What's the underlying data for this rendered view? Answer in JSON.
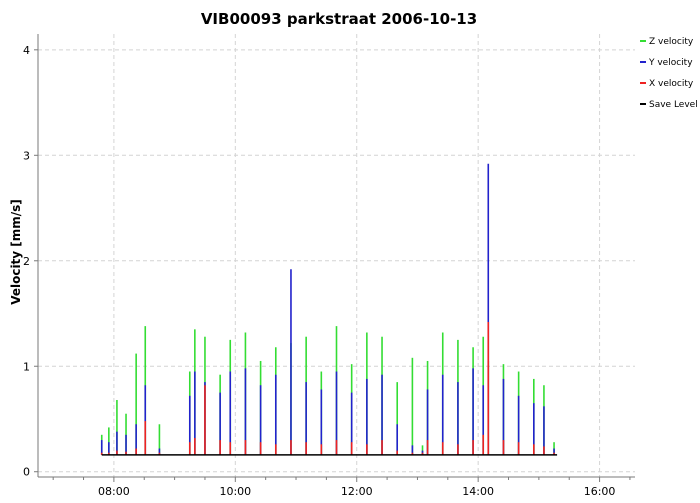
{
  "chart_data": {
    "type": "line",
    "title": "VIB00093 parkstraat 2006-10-13",
    "xlabel": "",
    "ylabel": "Velocity [mm/s]",
    "x_ticks": [
      "08:00",
      "10:00",
      "12:00",
      "14:00",
      "16:00"
    ],
    "xlim": [
      "06:45",
      "16:35"
    ],
    "y_ticks": [
      0,
      1,
      2,
      3,
      4
    ],
    "ylim": [
      -0.05,
      4.15
    ],
    "grid": true,
    "legend_position": "top-right",
    "series": [
      {
        "name": "Z velocity",
        "color": "#33dd33",
        "x": [
          "07:48",
          "07:55",
          "08:03",
          "08:12",
          "08:22",
          "08:31",
          "08:45",
          "09:15",
          "09:20",
          "09:30",
          "09:45",
          "09:55",
          "10:10",
          "10:25",
          "10:40",
          "10:55",
          "11:10",
          "11:25",
          "11:40",
          "11:55",
          "12:10",
          "12:25",
          "12:40",
          "12:55",
          "13:05",
          "13:10",
          "13:25",
          "13:40",
          "13:55",
          "14:05",
          "14:10",
          "14:25",
          "14:40",
          "14:55",
          "15:05",
          "15:15"
        ],
        "y": [
          0.35,
          0.42,
          0.68,
          0.55,
          1.12,
          1.38,
          0.45,
          0.95,
          1.35,
          1.28,
          0.92,
          1.25,
          1.32,
          1.05,
          1.18,
          1.22,
          1.28,
          0.95,
          1.38,
          1.02,
          1.32,
          1.28,
          0.85,
          1.08,
          0.25,
          1.05,
          1.32,
          1.25,
          1.18,
          1.28,
          1.05,
          1.02,
          0.95,
          0.88,
          0.82,
          0.28
        ]
      },
      {
        "name": "Y velocity",
        "color": "#2222cc",
        "x": [
          "07:48",
          "07:55",
          "08:03",
          "08:12",
          "08:22",
          "08:31",
          "08:45",
          "09:15",
          "09:20",
          "09:30",
          "09:45",
          "09:55",
          "10:10",
          "10:25",
          "10:40",
          "10:55",
          "11:10",
          "11:25",
          "11:40",
          "11:55",
          "12:10",
          "12:25",
          "12:40",
          "12:55",
          "13:05",
          "13:10",
          "13:25",
          "13:40",
          "13:55",
          "14:05",
          "14:10",
          "14:25",
          "14:40",
          "14:55",
          "15:05",
          "15:15"
        ],
        "y": [
          0.3,
          0.28,
          0.38,
          0.35,
          0.45,
          0.82,
          0.22,
          0.72,
          0.95,
          0.85,
          0.75,
          0.95,
          0.98,
          0.82,
          0.92,
          1.92,
          0.85,
          0.78,
          0.95,
          0.75,
          0.88,
          0.92,
          0.45,
          0.25,
          0.2,
          0.78,
          0.92,
          0.85,
          0.98,
          0.82,
          2.92,
          0.88,
          0.72,
          0.65,
          0.62,
          0.22
        ]
      },
      {
        "name": "X velocity",
        "color": "#ee2222",
        "x": [
          "07:48",
          "07:55",
          "08:03",
          "08:12",
          "08:22",
          "08:31",
          "08:45",
          "09:15",
          "09:20",
          "09:30",
          "09:45",
          "09:55",
          "10:10",
          "10:25",
          "10:40",
          "10:55",
          "11:10",
          "11:25",
          "11:40",
          "11:55",
          "12:10",
          "12:25",
          "12:40",
          "12:55",
          "13:05",
          "13:10",
          "13:25",
          "13:40",
          "13:55",
          "14:05",
          "14:10",
          "14:25",
          "14:40",
          "14:55",
          "15:05",
          "15:15"
        ],
        "y": [
          0.18,
          0.18,
          0.2,
          0.19,
          0.22,
          0.48,
          0.18,
          0.28,
          0.32,
          0.82,
          0.3,
          0.28,
          0.3,
          0.28,
          0.26,
          0.3,
          0.28,
          0.26,
          0.3,
          0.28,
          0.26,
          0.3,
          0.2,
          0.18,
          0.18,
          0.3,
          0.28,
          0.26,
          0.3,
          0.35,
          1.42,
          0.3,
          0.28,
          0.26,
          0.24,
          0.18
        ]
      },
      {
        "name": "Save Level",
        "color": "#000000",
        "x": [
          "07:48",
          "15:18"
        ],
        "y": [
          0.16,
          0.16
        ]
      }
    ]
  }
}
